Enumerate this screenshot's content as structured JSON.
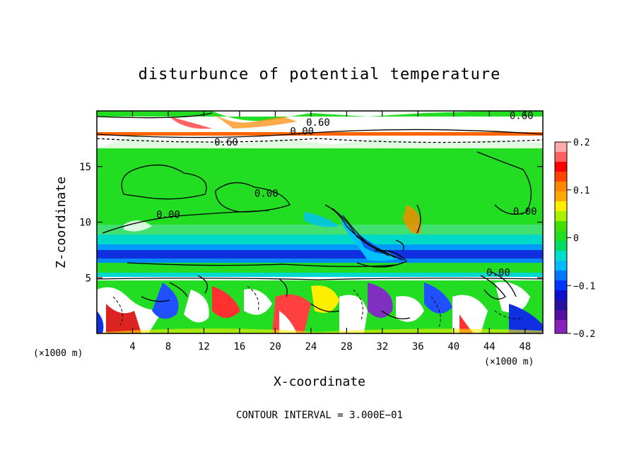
{
  "chart_data": {
    "type": "heatmap",
    "title": "disturbunce of potential temperature",
    "xlabel": "X-coordinate",
    "ylabel": "Z-coordinate",
    "x_unit": "(×1000 m)",
    "x_unit_right": "(×1000 m)",
    "xlim": [
      0,
      50
    ],
    "ylim": [
      0,
      20
    ],
    "x_ticks": [
      4,
      8,
      12,
      16,
      20,
      24,
      28,
      32,
      36,
      40,
      44,
      48
    ],
    "y_ticks": [
      5,
      10,
      15
    ],
    "colorbar": {
      "range": [
        -0.2,
        0.2
      ],
      "ticks": [
        {
          "value": 0.2,
          "label": "0.2"
        },
        {
          "value": 0.1,
          "label": "0.1"
        },
        {
          "value": 0.0,
          "label": "0"
        },
        {
          "value": -0.1,
          "label": "−0.1"
        },
        {
          "value": -0.2,
          "label": "−0.2"
        }
      ]
    },
    "contour_labels": [
      {
        "text": "0.60",
        "x": 24.8,
        "z": 19.0
      },
      {
        "text": "0.60",
        "x": 47.6,
        "z": 19.6
      },
      {
        "text": "0.00",
        "x": 23.0,
        "z": 18.2
      },
      {
        "text": "0.60",
        "x": 14.5,
        "z": 17.2
      },
      {
        "text": "0.00",
        "x": 19.0,
        "z": 12.6
      },
      {
        "text": "0.00",
        "x": 8.0,
        "z": 10.7
      },
      {
        "text": "0.00",
        "x": 48.0,
        "z": 11.0
      },
      {
        "text": "0.00",
        "x": 45.0,
        "z": 5.5
      }
    ],
    "footer": "CONTOUR INTERVAL = 3.000E−01"
  }
}
